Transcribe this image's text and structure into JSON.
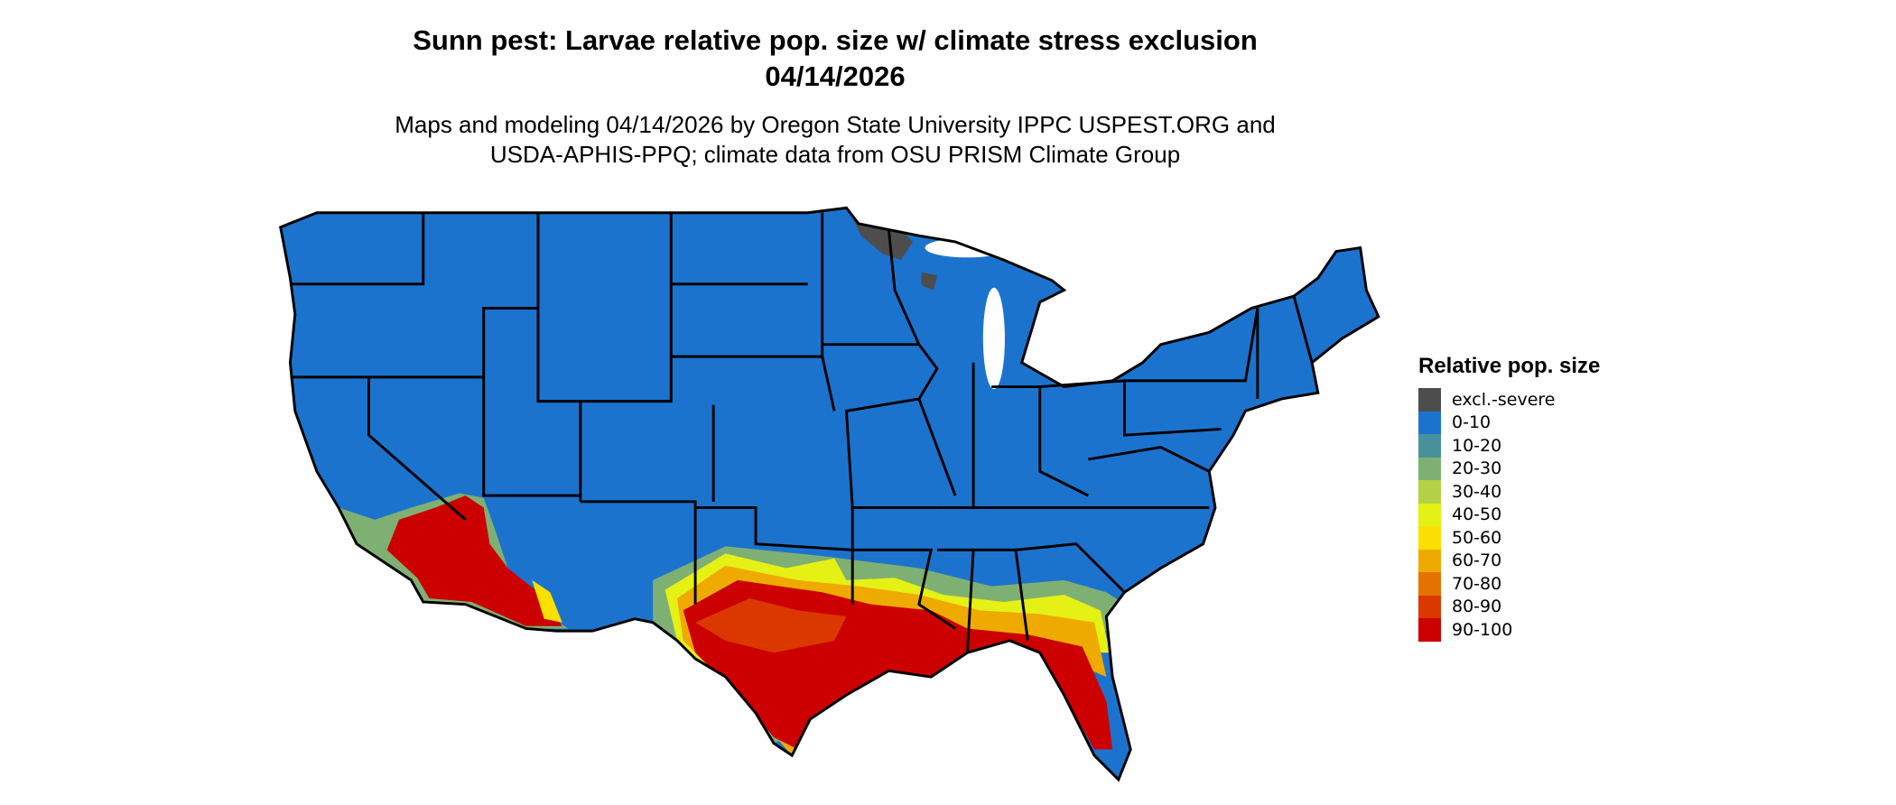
{
  "title": {
    "line1": "Sunn pest: Larvae relative pop. size w/ climate stress exclusion",
    "line2": "04/14/2026"
  },
  "subtitle": {
    "line1": "Maps and modeling 04/14/2026 by Oregon State University IPPC USPEST.ORG and",
    "line2": "USDA-APHIS-PPQ; climate data from OSU PRISM Climate Group"
  },
  "legend": {
    "title": "Relative pop. size",
    "items": [
      {
        "label": "excl.-severe",
        "color": "#4d4d4d"
      },
      {
        "label": "0-10",
        "color": "#1c73ce"
      },
      {
        "label": "10-20",
        "color": "#47909c"
      },
      {
        "label": "20-30",
        "color": "#7fb073"
      },
      {
        "label": "30-40",
        "color": "#b3d245"
      },
      {
        "label": "40-50",
        "color": "#e5f015"
      },
      {
        "label": "50-60",
        "color": "#fae000"
      },
      {
        "label": "60-70",
        "color": "#efaa00"
      },
      {
        "label": "70-80",
        "color": "#e57200"
      },
      {
        "label": "80-90",
        "color": "#db3800"
      },
      {
        "label": "90-100",
        "color": "#cc0000"
      }
    ]
  }
}
